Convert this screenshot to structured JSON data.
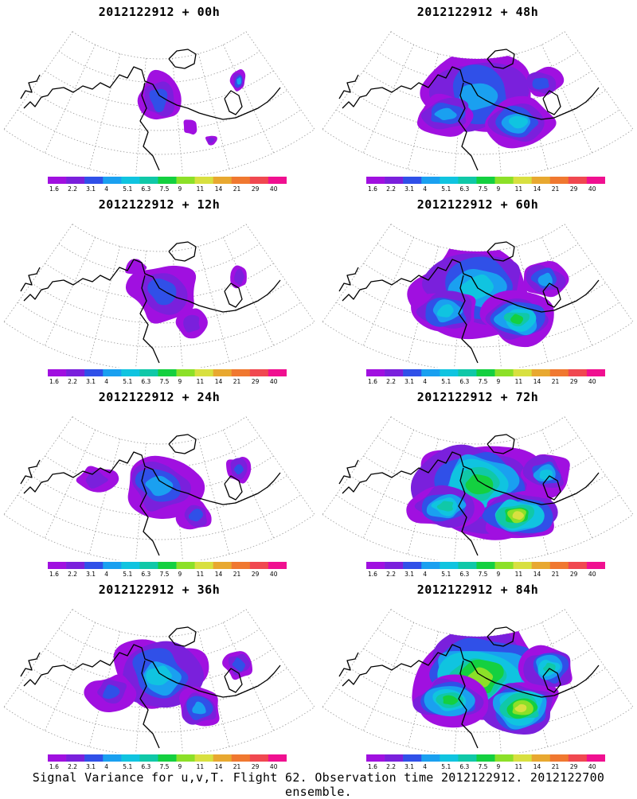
{
  "caption": "Signal Variance for u,v,T. Flight 62. Observation time 2012122912. 2012122700 ensemble.",
  "colorbar": {
    "labels": [
      "1.6",
      "2.2",
      "3.1",
      "4",
      "5.1",
      "6.3",
      "7.5",
      "9",
      "11",
      "14",
      "21",
      "29",
      "40"
    ],
    "colors": [
      "#a010e0",
      "#7a20dc",
      "#3050e8",
      "#1aa0f0",
      "#10c4e0",
      "#10c8a8",
      "#14d040",
      "#8ce028",
      "#d8e040",
      "#e8a830",
      "#f07830",
      "#f04850",
      "#f01090"
    ]
  },
  "chart_data": [
    {
      "type": "heatmap",
      "title": "2012122912 + 00h",
      "base_time": "2012122912",
      "lead_hours": 0,
      "field": "Signal Variance for u,v,T",
      "max_level": "6.3"
    },
    {
      "type": "heatmap",
      "title": "2012122912 + 48h",
      "base_time": "2012122912",
      "lead_hours": 48,
      "field": "Signal Variance for u,v,T",
      "max_level": "9"
    },
    {
      "type": "heatmap",
      "title": "2012122912 + 12h",
      "base_time": "2012122912",
      "lead_hours": 12,
      "field": "Signal Variance for u,v,T",
      "max_level": "5.1"
    },
    {
      "type": "heatmap",
      "title": "2012122912 + 60h",
      "base_time": "2012122912",
      "lead_hours": 60,
      "field": "Signal Variance for u,v,T",
      "max_level": "11"
    },
    {
      "type": "heatmap",
      "title": "2012122912 + 24h",
      "base_time": "2012122912",
      "lead_hours": 24,
      "field": "Signal Variance for u,v,T",
      "max_level": "6.3"
    },
    {
      "type": "heatmap",
      "title": "2012122912 + 72h",
      "base_time": "2012122912",
      "lead_hours": 72,
      "field": "Signal Variance for u,v,T",
      "max_level": "14"
    },
    {
      "type": "heatmap",
      "title": "2012122912 + 36h",
      "base_time": "2012122912",
      "lead_hours": 36,
      "field": "Signal Variance for u,v,T",
      "max_level": "7.5"
    },
    {
      "type": "heatmap",
      "title": "2012122912 + 84h",
      "base_time": "2012122912",
      "lead_hours": 84,
      "field": "Signal Variance for u,v,T",
      "max_level": "14"
    }
  ]
}
